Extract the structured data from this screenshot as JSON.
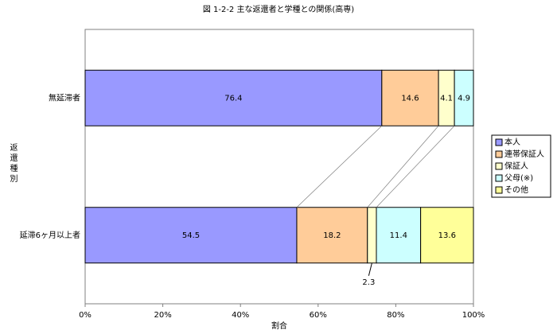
{
  "chart_data": {
    "type": "stacked-bar-horizontal",
    "title": "図 1-2-2 主な返還者と学種との関係(高専)",
    "y_label": "返還種別",
    "x_label": "割合",
    "categories": [
      "無延滞者",
      "延滞6ヶ月以上者"
    ],
    "series": [
      {
        "name": "本人",
        "color": "#9999ff",
        "values": [
          76.4,
          54.5
        ]
      },
      {
        "name": "連帯保証人",
        "color": "#ffcc99",
        "values": [
          14.6,
          18.2
        ]
      },
      {
        "name": "保証人",
        "color": "#ffffcc",
        "values": [
          4.1,
          2.3
        ]
      },
      {
        "name": "父母(※)",
        "color": "#ccffff",
        "values": [
          4.9,
          11.4
        ]
      },
      {
        "name": "その他",
        "color": "#ffff99",
        "values": [
          null,
          13.6
        ]
      }
    ],
    "xlim": [
      0,
      100
    ],
    "xticks": [
      {
        "value": 0,
        "label": "0%"
      },
      {
        "value": 20,
        "label": "20%"
      },
      {
        "value": 40,
        "label": "40%"
      },
      {
        "value": 60,
        "label": "60%"
      },
      {
        "value": 80,
        "label": "80%"
      },
      {
        "value": 100,
        "label": "100%"
      }
    ],
    "legend": "right"
  }
}
